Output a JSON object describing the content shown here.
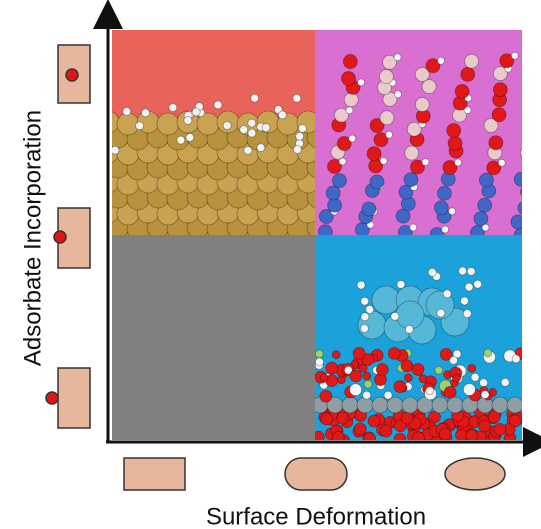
{
  "axes": {
    "y_label": "Adsorbate Incorporation",
    "x_label": "Surface Deformation"
  }
}
